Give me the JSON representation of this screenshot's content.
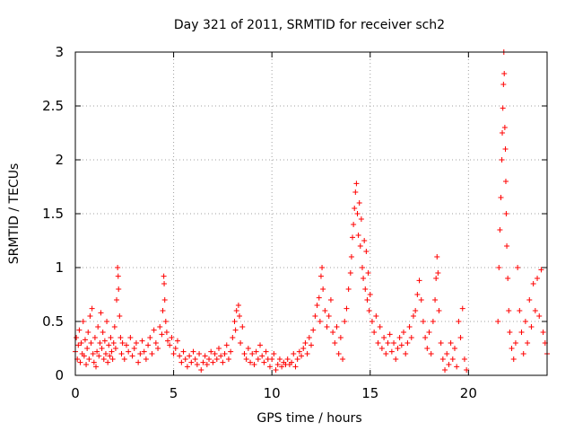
{
  "chart_data": {
    "type": "scatter",
    "title": "Day 321 of 2011, SRMTID for receiver sch2",
    "xlabel": "GPS time / hours",
    "ylabel": "SRMTID / TECUs",
    "xlim": [
      0,
      24
    ],
    "ylim": [
      0,
      3
    ],
    "xticks": [
      "0",
      "5",
      "10",
      "15",
      "20"
    ],
    "yticks": [
      "0",
      "0.5",
      "1",
      "1.5",
      "2",
      "2.5",
      "3"
    ],
    "grid": true,
    "marker": "+",
    "series": [
      {
        "name": "sch2",
        "color": "#ff0000",
        "points": [
          [
            0.0,
            0.22
          ],
          [
            0.05,
            0.35
          ],
          [
            0.1,
            0.15
          ],
          [
            0.15,
            0.28
          ],
          [
            0.2,
            0.42
          ],
          [
            0.25,
            0.12
          ],
          [
            0.3,
            0.3
          ],
          [
            0.35,
            0.2
          ],
          [
            0.4,
            0.5
          ],
          [
            0.45,
            0.18
          ],
          [
            0.5,
            0.33
          ],
          [
            0.55,
            0.1
          ],
          [
            0.6,
            0.25
          ],
          [
            0.65,
            0.4
          ],
          [
            0.7,
            0.15
          ],
          [
            0.75,
            0.55
          ],
          [
            0.8,
            0.3
          ],
          [
            0.85,
            0.62
          ],
          [
            0.9,
            0.2
          ],
          [
            0.95,
            0.12
          ],
          [
            1.0,
            0.35
          ],
          [
            1.05,
            0.08
          ],
          [
            1.1,
            0.22
          ],
          [
            1.15,
            0.45
          ],
          [
            1.2,
            0.18
          ],
          [
            1.25,
            0.3
          ],
          [
            1.3,
            0.58
          ],
          [
            1.35,
            0.25
          ],
          [
            1.4,
            0.4
          ],
          [
            1.45,
            0.15
          ],
          [
            1.5,
            0.32
          ],
          [
            1.55,
            0.2
          ],
          [
            1.6,
            0.5
          ],
          [
            1.65,
            0.12
          ],
          [
            1.7,
            0.28
          ],
          [
            1.75,
            0.18
          ],
          [
            1.8,
            0.35
          ],
          [
            1.85,
            0.22
          ],
          [
            1.9,
            0.15
          ],
          [
            1.95,
            0.3
          ],
          [
            2.0,
            0.45
          ],
          [
            2.05,
            0.25
          ],
          [
            2.1,
            0.7
          ],
          [
            2.15,
            1.0
          ],
          [
            2.18,
            0.92
          ],
          [
            2.2,
            0.8
          ],
          [
            2.25,
            0.55
          ],
          [
            2.3,
            0.35
          ],
          [
            2.35,
            0.2
          ],
          [
            2.4,
            0.3
          ],
          [
            2.5,
            0.15
          ],
          [
            2.6,
            0.28
          ],
          [
            2.7,
            0.22
          ],
          [
            2.8,
            0.35
          ],
          [
            2.9,
            0.18
          ],
          [
            3.0,
            0.25
          ],
          [
            3.1,
            0.3
          ],
          [
            3.2,
            0.12
          ],
          [
            3.3,
            0.2
          ],
          [
            3.4,
            0.32
          ],
          [
            3.5,
            0.22
          ],
          [
            3.6,
            0.15
          ],
          [
            3.7,
            0.28
          ],
          [
            3.8,
            0.35
          ],
          [
            3.9,
            0.2
          ],
          [
            4.0,
            0.42
          ],
          [
            4.1,
            0.3
          ],
          [
            4.2,
            0.25
          ],
          [
            4.3,
            0.45
          ],
          [
            4.4,
            0.38
          ],
          [
            4.45,
            0.6
          ],
          [
            4.5,
            0.92
          ],
          [
            4.52,
            0.85
          ],
          [
            4.55,
            0.7
          ],
          [
            4.6,
            0.5
          ],
          [
            4.65,
            0.4
          ],
          [
            4.7,
            0.32
          ],
          [
            4.8,
            0.28
          ],
          [
            4.9,
            0.35
          ],
          [
            5.0,
            0.2
          ],
          [
            5.1,
            0.25
          ],
          [
            5.2,
            0.32
          ],
          [
            5.3,
            0.18
          ],
          [
            5.4,
            0.12
          ],
          [
            5.5,
            0.22
          ],
          [
            5.6,
            0.15
          ],
          [
            5.7,
            0.08
          ],
          [
            5.8,
            0.18
          ],
          [
            5.9,
            0.12
          ],
          [
            6.0,
            0.22
          ],
          [
            6.1,
            0.15
          ],
          [
            6.2,
            0.1
          ],
          [
            6.3,
            0.2
          ],
          [
            6.4,
            0.05
          ],
          [
            6.5,
            0.12
          ],
          [
            6.6,
            0.18
          ],
          [
            6.7,
            0.1
          ],
          [
            6.8,
            0.15
          ],
          [
            6.9,
            0.22
          ],
          [
            7.0,
            0.12
          ],
          [
            7.1,
            0.2
          ],
          [
            7.2,
            0.15
          ],
          [
            7.3,
            0.25
          ],
          [
            7.4,
            0.18
          ],
          [
            7.5,
            0.12
          ],
          [
            7.6,
            0.2
          ],
          [
            7.7,
            0.28
          ],
          [
            7.8,
            0.15
          ],
          [
            7.9,
            0.22
          ],
          [
            8.0,
            0.35
          ],
          [
            8.1,
            0.5
          ],
          [
            8.15,
            0.42
          ],
          [
            8.2,
            0.6
          ],
          [
            8.3,
            0.65
          ],
          [
            8.35,
            0.55
          ],
          [
            8.4,
            0.3
          ],
          [
            8.5,
            0.45
          ],
          [
            8.6,
            0.2
          ],
          [
            8.7,
            0.15
          ],
          [
            8.8,
            0.25
          ],
          [
            8.9,
            0.12
          ],
          [
            9.0,
            0.2
          ],
          [
            9.1,
            0.1
          ],
          [
            9.2,
            0.22
          ],
          [
            9.3,
            0.15
          ],
          [
            9.4,
            0.28
          ],
          [
            9.5,
            0.18
          ],
          [
            9.6,
            0.12
          ],
          [
            9.7,
            0.22
          ],
          [
            9.8,
            0.15
          ],
          [
            9.9,
            0.08
          ],
          [
            10.0,
            0.15
          ],
          [
            10.1,
            0.2
          ],
          [
            10.2,
            0.05
          ],
          [
            10.3,
            0.1
          ],
          [
            10.4,
            0.15
          ],
          [
            10.5,
            0.08
          ],
          [
            10.6,
            0.12
          ],
          [
            10.7,
            0.1
          ],
          [
            10.8,
            0.15
          ],
          [
            10.9,
            0.1
          ],
          [
            11.0,
            0.12
          ],
          [
            11.1,
            0.2
          ],
          [
            11.2,
            0.08
          ],
          [
            11.3,
            0.15
          ],
          [
            11.4,
            0.22
          ],
          [
            11.5,
            0.18
          ],
          [
            11.6,
            0.25
          ],
          [
            11.7,
            0.3
          ],
          [
            11.8,
            0.2
          ],
          [
            11.9,
            0.35
          ],
          [
            12.0,
            0.28
          ],
          [
            12.1,
            0.42
          ],
          [
            12.2,
            0.55
          ],
          [
            12.3,
            0.65
          ],
          [
            12.4,
            0.72
          ],
          [
            12.45,
            0.5
          ],
          [
            12.5,
            0.92
          ],
          [
            12.55,
            1.0
          ],
          [
            12.6,
            0.8
          ],
          [
            12.7,
            0.6
          ],
          [
            12.8,
            0.45
          ],
          [
            12.9,
            0.55
          ],
          [
            13.0,
            0.7
          ],
          [
            13.1,
            0.4
          ],
          [
            13.2,
            0.3
          ],
          [
            13.3,
            0.45
          ],
          [
            13.4,
            0.2
          ],
          [
            13.5,
            0.35
          ],
          [
            13.6,
            0.15
          ],
          [
            13.7,
            0.5
          ],
          [
            13.8,
            0.62
          ],
          [
            13.9,
            0.8
          ],
          [
            14.0,
            0.95
          ],
          [
            14.05,
            1.1
          ],
          [
            14.1,
            1.28
          ],
          [
            14.15,
            1.4
          ],
          [
            14.2,
            1.55
          ],
          [
            14.25,
            1.7
          ],
          [
            14.3,
            1.78
          ],
          [
            14.35,
            1.5
          ],
          [
            14.4,
            1.3
          ],
          [
            14.45,
            1.6
          ],
          [
            14.5,
            1.2
          ],
          [
            14.55,
            1.45
          ],
          [
            14.6,
            1.0
          ],
          [
            14.65,
            0.9
          ],
          [
            14.7,
            1.25
          ],
          [
            14.75,
            0.8
          ],
          [
            14.8,
            1.15
          ],
          [
            14.85,
            0.7
          ],
          [
            14.9,
            0.95
          ],
          [
            14.95,
            0.6
          ],
          [
            15.0,
            0.75
          ],
          [
            15.1,
            0.5
          ],
          [
            15.2,
            0.4
          ],
          [
            15.3,
            0.55
          ],
          [
            15.4,
            0.3
          ],
          [
            15.5,
            0.45
          ],
          [
            15.6,
            0.25
          ],
          [
            15.7,
            0.35
          ],
          [
            15.8,
            0.2
          ],
          [
            15.9,
            0.3
          ],
          [
            16.0,
            0.38
          ],
          [
            16.1,
            0.22
          ],
          [
            16.2,
            0.3
          ],
          [
            16.3,
            0.15
          ],
          [
            16.4,
            0.25
          ],
          [
            16.5,
            0.35
          ],
          [
            16.6,
            0.28
          ],
          [
            16.7,
            0.4
          ],
          [
            16.8,
            0.2
          ],
          [
            16.9,
            0.3
          ],
          [
            17.0,
            0.45
          ],
          [
            17.1,
            0.35
          ],
          [
            17.2,
            0.55
          ],
          [
            17.3,
            0.6
          ],
          [
            17.4,
            0.75
          ],
          [
            17.5,
            0.88
          ],
          [
            17.6,
            0.7
          ],
          [
            17.7,
            0.5
          ],
          [
            17.8,
            0.35
          ],
          [
            17.9,
            0.25
          ],
          [
            18.0,
            0.4
          ],
          [
            18.1,
            0.2
          ],
          [
            18.2,
            0.5
          ],
          [
            18.3,
            0.7
          ],
          [
            18.35,
            0.9
          ],
          [
            18.4,
            1.1
          ],
          [
            18.45,
            0.95
          ],
          [
            18.5,
            0.6
          ],
          [
            18.6,
            0.3
          ],
          [
            18.7,
            0.15
          ],
          [
            18.8,
            0.05
          ],
          [
            18.9,
            0.2
          ],
          [
            19.0,
            0.1
          ],
          [
            19.1,
            0.3
          ],
          [
            19.2,
            0.15
          ],
          [
            19.3,
            0.25
          ],
          [
            19.4,
            0.08
          ],
          [
            19.5,
            0.5
          ],
          [
            19.6,
            0.35
          ],
          [
            19.7,
            0.62
          ],
          [
            19.8,
            0.15
          ],
          [
            19.9,
            0.05
          ],
          [
            21.5,
            0.5
          ],
          [
            21.55,
            1.0
          ],
          [
            21.6,
            1.35
          ],
          [
            21.65,
            1.65
          ],
          [
            21.7,
            2.0
          ],
          [
            21.72,
            2.25
          ],
          [
            21.75,
            2.48
          ],
          [
            21.78,
            2.7
          ],
          [
            21.8,
            3.0
          ],
          [
            21.82,
            2.8
          ],
          [
            21.85,
            2.3
          ],
          [
            21.88,
            2.1
          ],
          [
            21.9,
            1.8
          ],
          [
            21.92,
            1.5
          ],
          [
            21.95,
            1.2
          ],
          [
            22.0,
            0.9
          ],
          [
            22.05,
            0.6
          ],
          [
            22.1,
            0.4
          ],
          [
            22.2,
            0.25
          ],
          [
            22.3,
            0.15
          ],
          [
            22.4,
            0.3
          ],
          [
            22.5,
            1.0
          ],
          [
            22.6,
            0.6
          ],
          [
            22.7,
            0.4
          ],
          [
            22.8,
            0.2
          ],
          [
            22.9,
            0.5
          ],
          [
            23.0,
            0.3
          ],
          [
            23.1,
            0.7
          ],
          [
            23.2,
            0.45
          ],
          [
            23.3,
            0.85
          ],
          [
            23.4,
            0.6
          ],
          [
            23.5,
            0.9
          ],
          [
            23.6,
            0.55
          ],
          [
            23.7,
            0.98
          ],
          [
            23.8,
            0.4
          ],
          [
            23.9,
            0.3
          ],
          [
            24.0,
            0.2
          ]
        ]
      }
    ]
  }
}
